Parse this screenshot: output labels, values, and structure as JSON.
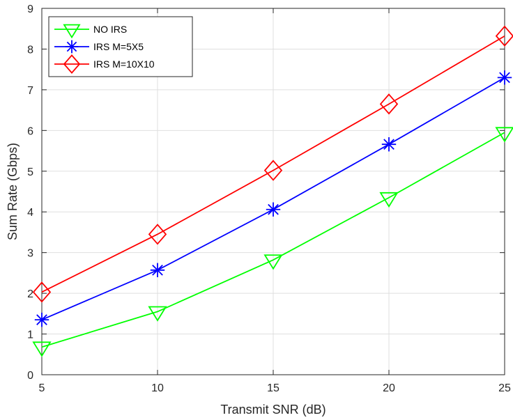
{
  "chart_data": {
    "type": "line",
    "title": "",
    "xlabel": "Transmit SNR (dB)",
    "ylabel": "Sum Rate (Gbps)",
    "xlim": [
      5,
      25
    ],
    "ylim": [
      0,
      9
    ],
    "xticks": [
      "5",
      "10",
      "15",
      "20",
      "25"
    ],
    "yticks": [
      "0",
      "1",
      "2",
      "3",
      "4",
      "5",
      "6",
      "7",
      "8",
      "9"
    ],
    "grid": true,
    "legend_position": "top-left",
    "x": [
      5,
      10,
      15,
      20,
      25
    ],
    "series": [
      {
        "name": "NO IRS",
        "values": [
          0.68,
          1.55,
          2.82,
          4.35,
          5.95
        ],
        "color": "#00ff00",
        "marker": "triangle-down"
      },
      {
        "name": "IRS M=5X5",
        "values": [
          1.35,
          2.57,
          4.06,
          5.66,
          7.3
        ],
        "color": "#0000ff",
        "marker": "asterisk"
      },
      {
        "name": "IRS M=10X10",
        "values": [
          2.03,
          3.45,
          5.02,
          6.65,
          8.32
        ],
        "color": "#ff0000",
        "marker": "diamond"
      }
    ]
  }
}
